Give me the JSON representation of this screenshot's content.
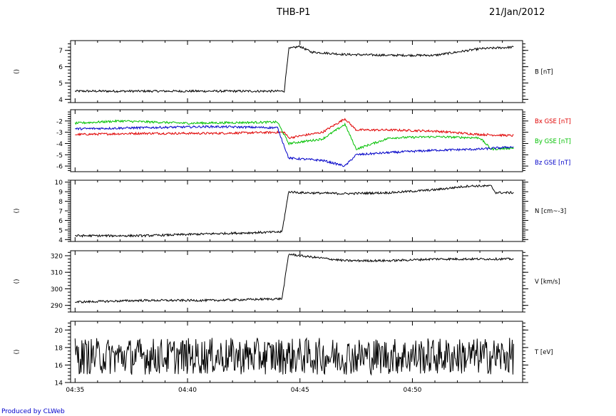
{
  "header": {
    "title": "THB-P1",
    "date": "21/Jan/2012"
  },
  "footer": {
    "credit": "Produced by CLWeb"
  },
  "colors": {
    "black": "#000000",
    "red": "#e00000",
    "green": "#00c000",
    "blue": "#0000c8",
    "credit": "#0000cc"
  },
  "chart_data": [
    {
      "type": "line",
      "ylabel": "B [nT]",
      "side_label": "()",
      "ylim": [
        3.8,
        7.6
      ],
      "yticks": [
        4,
        5,
        6,
        7
      ],
      "series": [
        {
          "color": "#000000",
          "x": [
            "04:35",
            "04:38",
            "04:41",
            "04:44.3",
            "04:44.5",
            "04:45",
            "04:45.5",
            "04:47",
            "04:49",
            "04:51",
            "04:53",
            "04:54.5"
          ],
          "values": [
            4.5,
            4.5,
            4.5,
            4.5,
            7.1,
            7.25,
            6.9,
            6.75,
            6.7,
            6.7,
            7.1,
            7.2
          ]
        }
      ]
    },
    {
      "type": "line",
      "ylim": [
        -6.5,
        -1.0
      ],
      "yticks": [
        -2,
        -3,
        -4,
        -5,
        -6
      ],
      "series": [
        {
          "name": "Bx GSE [nT]",
          "color": "#e00000",
          "x": [
            "04:35",
            "04:38",
            "04:41",
            "04:44.3",
            "04:44.5",
            "04:46",
            "04:47",
            "04:47.5",
            "04:49",
            "04:51",
            "04:53",
            "04:54.5"
          ],
          "values": [
            -3.2,
            -3.1,
            -3.1,
            -3.0,
            -3.5,
            -3.0,
            -1.8,
            -2.8,
            -2.8,
            -2.9,
            -3.2,
            -3.3
          ]
        },
        {
          "name": "By GSE [nT]",
          "color": "#00c000",
          "x": [
            "04:35",
            "04:37",
            "04:40",
            "04:44",
            "04:44.5",
            "04:46",
            "04:47",
            "04:47.5",
            "04:49",
            "04:51",
            "04:53",
            "04:53.5",
            "04:54.5"
          ],
          "values": [
            -2.2,
            -2.0,
            -2.2,
            -2.1,
            -4.0,
            -3.6,
            -2.3,
            -4.5,
            -3.5,
            -3.4,
            -3.5,
            -4.5,
            -4.4
          ]
        },
        {
          "name": "Bz GSE [nT]",
          "color": "#0000c8",
          "x": [
            "04:35",
            "04:38",
            "04:41",
            "04:44",
            "04:44.5",
            "04:46",
            "04:47",
            "04:47.5",
            "04:49",
            "04:51",
            "04:53",
            "04:54.5"
          ],
          "values": [
            -2.7,
            -2.6,
            -2.5,
            -2.6,
            -5.3,
            -5.5,
            -6.0,
            -5.0,
            -4.8,
            -4.6,
            -4.5,
            -4.3
          ]
        }
      ]
    },
    {
      "type": "line",
      "ylabel": "N [cm^-3]",
      "side_label": "()",
      "ylim": [
        3.8,
        10.2
      ],
      "yticks": [
        4,
        5,
        6,
        7,
        8,
        9,
        10
      ],
      "series": [
        {
          "color": "#000000",
          "x": [
            "04:35",
            "04:38",
            "04:41",
            "04:44.2",
            "04:44.5",
            "04:45",
            "04:47",
            "04:49",
            "04:51",
            "04:52.5",
            "04:53.5",
            "04:53.7",
            "04:54.5"
          ],
          "values": [
            4.4,
            4.4,
            4.6,
            4.8,
            9.0,
            8.9,
            8.8,
            8.9,
            9.2,
            9.6,
            9.6,
            8.9,
            8.9
          ]
        }
      ]
    },
    {
      "type": "line",
      "ylabel": "V [km/s]",
      "side_label": "()",
      "ylim": [
        286,
        323
      ],
      "yticks": [
        290,
        300,
        310,
        320
      ],
      "series": [
        {
          "color": "#000000",
          "x": [
            "04:35",
            "04:38",
            "04:41",
            "04:44.2",
            "04:44.5",
            "04:45",
            "04:47",
            "04:49",
            "04:51",
            "04:53",
            "04:54.5"
          ],
          "values": [
            292,
            293,
            293,
            294,
            321,
            320,
            317,
            317,
            318,
            318,
            318
          ]
        }
      ]
    },
    {
      "type": "line",
      "ylabel": "T [eV]",
      "side_label": "()",
      "ylim": [
        14,
        21
      ],
      "yticks": [
        14,
        16,
        18,
        20
      ],
      "xticks": [
        "04:35",
        "04:40",
        "04:45",
        "04:50"
      ],
      "series": [
        {
          "color": "#000000",
          "x": [
            "04:35",
            "04:54.5"
          ],
          "values": [
            17.0,
            17.0
          ]
        }
      ]
    }
  ]
}
